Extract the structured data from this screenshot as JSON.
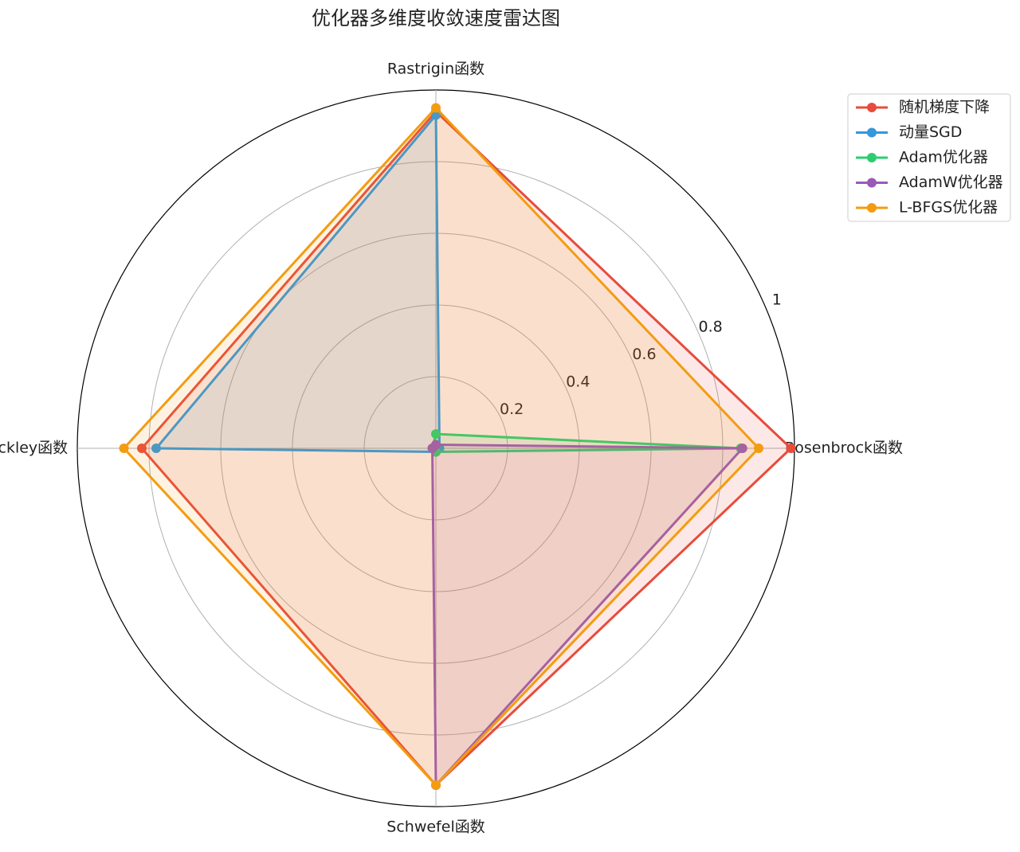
{
  "chart_data": {
    "type": "radar",
    "title": "优化器多维度收敛速度雷达图",
    "categories": [
      "Rosenbrock函数",
      "Rastrigin函数",
      "Ackley函数",
      "Schwefel函数"
    ],
    "series": [
      {
        "name": "随机梯度下降",
        "color": "#e74c3c",
        "values": [
          0.99,
          0.94,
          0.82,
          0.94
        ]
      },
      {
        "name": "动量SGD",
        "color": "#3498db",
        "values": [
          0.01,
          0.93,
          0.78,
          0.01
        ]
      },
      {
        "name": "Adam优化器",
        "color": "#2ecc71",
        "values": [
          0.85,
          0.04,
          0.01,
          0.01
        ]
      },
      {
        "name": "AdamW优化器",
        "color": "#9b59b6",
        "values": [
          0.855,
          0.01,
          0.01,
          0.94
        ]
      },
      {
        "name": "L-BFGS优化器",
        "color": "#f39c12",
        "values": [
          0.9,
          0.95,
          0.87,
          0.94
        ]
      }
    ],
    "ylim": [
      0,
      1.0
    ],
    "yticks": [
      0.2,
      0.4,
      0.6,
      0.8,
      1.0
    ],
    "grid": true,
    "legend": "upper right"
  }
}
